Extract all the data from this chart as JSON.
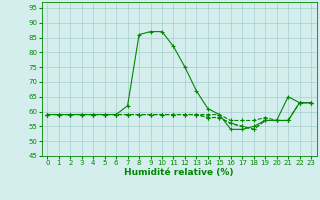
{
  "title": "",
  "xlabel": "Humidité relative (%)",
  "ylabel": "",
  "background_color": "#d4eeee",
  "grid_color": "#a8cccc",
  "line_color": "#008800",
  "xlim": [
    -0.5,
    23.5
  ],
  "ylim": [
    45,
    97
  ],
  "yticks": [
    45,
    50,
    55,
    60,
    65,
    70,
    75,
    80,
    85,
    90,
    95
  ],
  "xticks": [
    0,
    1,
    2,
    3,
    4,
    5,
    6,
    7,
    8,
    9,
    10,
    11,
    12,
    13,
    14,
    15,
    16,
    17,
    18,
    19,
    20,
    21,
    22,
    23
  ],
  "series": [
    [
      59,
      59,
      59,
      59,
      59,
      59,
      59,
      62,
      86,
      87,
      87,
      82,
      75,
      67,
      61,
      59,
      54,
      54,
      55,
      57,
      57,
      65,
      63,
      63
    ],
    [
      59,
      59,
      59,
      59,
      59,
      59,
      59,
      59,
      59,
      59,
      59,
      59,
      59,
      59,
      59,
      59,
      57,
      57,
      57,
      58,
      57,
      57,
      63,
      63
    ],
    [
      59,
      59,
      59,
      59,
      59,
      59,
      59,
      59,
      59,
      59,
      59,
      59,
      59,
      59,
      58,
      58,
      56,
      55,
      54,
      57,
      57,
      57,
      63,
      63
    ],
    [
      59,
      59,
      59,
      59,
      59,
      59,
      59,
      59,
      59,
      59,
      59,
      59,
      59,
      59,
      58,
      58,
      56,
      55,
      54,
      57,
      57,
      57,
      63,
      63
    ]
  ],
  "xlabel_fontsize": 6.5,
  "tick_fontsize": 5.0
}
